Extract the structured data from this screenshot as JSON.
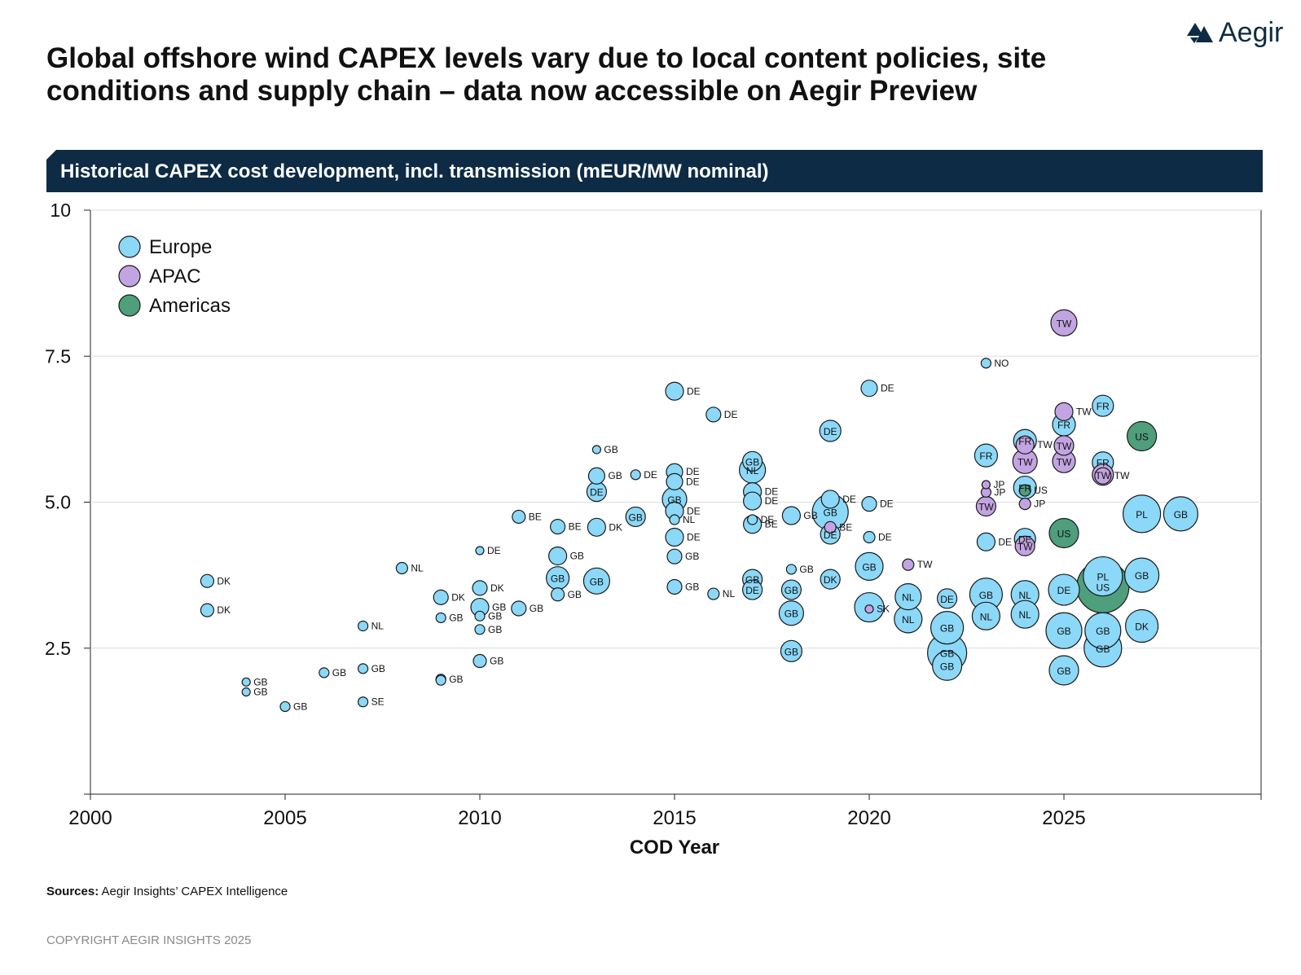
{
  "title": "Global offshore wind CAPEX levels vary due to local content policies, site conditions and supply chain – data now accessible on Aegir Preview",
  "logo": {
    "text": "Aegir",
    "icon": "mountain-logo-icon"
  },
  "banner": "Historical CAPEX cost development, incl. transmission (mEUR/MW nominal)",
  "sources": {
    "label": "Sources:",
    "text": "Aegir Insights’ CAPEX Intelligence"
  },
  "copyright": "COPYRIGHT AEGIR INSIGHTS 2025",
  "colors": {
    "Europe": "#8bd8f8",
    "APAC": "#c3a4e2",
    "Americas": "#4f9e7c",
    "banner": "#0d2b45"
  },
  "chart_data": {
    "type": "scatter",
    "xlabel": "COD Year",
    "ylabel": "",
    "xlim": [
      2000,
      2030
    ],
    "ylim": [
      0,
      10
    ],
    "xticks": [
      "2000",
      "2005",
      "2010",
      "2015",
      "2020",
      "2025"
    ],
    "yticks": [
      "2.5",
      "5.0",
      "7.5",
      "10"
    ],
    "grid": "horizontal",
    "legend": "top-left",
    "series": [
      {
        "name": "Europe",
        "points": [
          {
            "x": 2003,
            "y": 3.65,
            "s": 8,
            "label": "DK"
          },
          {
            "x": 2003,
            "y": 3.15,
            "s": 8,
            "label": "DK"
          },
          {
            "x": 2004,
            "y": 1.92,
            "s": 5,
            "label": "GB"
          },
          {
            "x": 2004,
            "y": 1.75,
            "s": 5,
            "label": "GB"
          },
          {
            "x": 2005,
            "y": 1.5,
            "s": 6,
            "label": "GB"
          },
          {
            "x": 2006,
            "y": 2.08,
            "s": 6,
            "label": "GB"
          },
          {
            "x": 2007,
            "y": 2.15,
            "s": 6,
            "label": "GB"
          },
          {
            "x": 2007,
            "y": 1.58,
            "s": 6,
            "label": "SE"
          },
          {
            "x": 2007,
            "y": 2.88,
            "s": 6,
            "label": "NL"
          },
          {
            "x": 2008,
            "y": 3.87,
            "s": 7,
            "label": "NL"
          },
          {
            "x": 2009,
            "y": 3.37,
            "s": 9,
            "label": "DK"
          },
          {
            "x": 2009,
            "y": 3.02,
            "s": 6,
            "label": "GB"
          },
          {
            "x": 2009,
            "y": 1.97,
            "s": 6,
            "label": "GB"
          },
          {
            "x": 2009,
            "y": 1.95,
            "s": 6,
            "label": ""
          },
          {
            "x": 2010,
            "y": 4.17,
            "s": 5,
            "label": "DE"
          },
          {
            "x": 2010,
            "y": 3.53,
            "s": 9,
            "label": "DK"
          },
          {
            "x": 2010,
            "y": 3.2,
            "s": 11,
            "label": "GB"
          },
          {
            "x": 2010,
            "y": 3.05,
            "s": 6,
            "label": "GB"
          },
          {
            "x": 2010,
            "y": 2.82,
            "s": 6,
            "label": "GB"
          },
          {
            "x": 2010,
            "y": 2.28,
            "s": 8,
            "label": "GB"
          },
          {
            "x": 2011,
            "y": 4.75,
            "s": 8,
            "label": "BE"
          },
          {
            "x": 2011,
            "y": 3.18,
            "s": 9,
            "label": "GB"
          },
          {
            "x": 2012,
            "y": 4.58,
            "s": 9,
            "label": "BE"
          },
          {
            "x": 2012,
            "y": 4.08,
            "s": 11,
            "label": "GB"
          },
          {
            "x": 2012,
            "y": 3.7,
            "s": 14,
            "label": "GB"
          },
          {
            "x": 2012,
            "y": 3.42,
            "s": 8,
            "label": "GB"
          },
          {
            "x": 2013,
            "y": 5.9,
            "s": 5,
            "label": "GB"
          },
          {
            "x": 2013,
            "y": 5.45,
            "s": 10,
            "label": "GB"
          },
          {
            "x": 2013,
            "y": 5.18,
            "s": 12,
            "label": "DE"
          },
          {
            "x": 2013,
            "y": 4.57,
            "s": 11,
            "label": "DK"
          },
          {
            "x": 2013,
            "y": 3.65,
            "s": 16,
            "label": "GB"
          },
          {
            "x": 2014,
            "y": 5.47,
            "s": 6,
            "label": "DE"
          },
          {
            "x": 2014,
            "y": 4.75,
            "s": 12,
            "label": "GB"
          },
          {
            "x": 2015,
            "y": 6.9,
            "s": 11,
            "label": "DE"
          },
          {
            "x": 2015,
            "y": 5.52,
            "s": 10,
            "label": "DE"
          },
          {
            "x": 2015,
            "y": 5.35,
            "s": 10,
            "label": "DE"
          },
          {
            "x": 2015,
            "y": 5.05,
            "s": 15,
            "label": "GB"
          },
          {
            "x": 2015,
            "y": 4.85,
            "s": 11,
            "label": "DE"
          },
          {
            "x": 2015,
            "y": 4.7,
            "s": 6,
            "label": "NL"
          },
          {
            "x": 2015,
            "y": 4.4,
            "s": 11,
            "label": "DE"
          },
          {
            "x": 2015,
            "y": 4.07,
            "s": 9,
            "label": "GB"
          },
          {
            "x": 2015,
            "y": 3.55,
            "s": 9,
            "label": "GB"
          },
          {
            "x": 2016,
            "y": 6.5,
            "s": 9,
            "label": "DE"
          },
          {
            "x": 2016,
            "y": 3.43,
            "s": 7,
            "label": "NL"
          },
          {
            "x": 2017,
            "y": 5.7,
            "s": 12,
            "label": "GB"
          },
          {
            "x": 2017,
            "y": 5.55,
            "s": 16,
            "label": "NL"
          },
          {
            "x": 2017,
            "y": 5.18,
            "s": 11,
            "label": "DE"
          },
          {
            "x": 2017,
            "y": 5.02,
            "s": 11,
            "label": "DE"
          },
          {
            "x": 2017,
            "y": 4.7,
            "s": 6,
            "label": "DE"
          },
          {
            "x": 2017,
            "y": 4.62,
            "s": 11,
            "label": "BE"
          },
          {
            "x": 2017,
            "y": 3.68,
            "s": 12,
            "label": "GB"
          },
          {
            "x": 2017,
            "y": 3.5,
            "s": 12,
            "label": "DE"
          },
          {
            "x": 2018,
            "y": 4.77,
            "s": 11,
            "label": "GB"
          },
          {
            "x": 2018,
            "y": 3.85,
            "s": 6,
            "label": "GB"
          },
          {
            "x": 2018,
            "y": 3.5,
            "s": 12,
            "label": "GB"
          },
          {
            "x": 2018,
            "y": 3.1,
            "s": 15,
            "label": "GB"
          },
          {
            "x": 2018,
            "y": 2.45,
            "s": 13,
            "label": "GB"
          },
          {
            "x": 2019,
            "y": 6.22,
            "s": 13,
            "label": "DE"
          },
          {
            "x": 2019,
            "y": 5.05,
            "s": 11,
            "label": "DE"
          },
          {
            "x": 2019,
            "y": 4.83,
            "s": 22,
            "label": "GB"
          },
          {
            "x": 2019,
            "y": 4.45,
            "s": 12,
            "label": "DE"
          },
          {
            "x": 2019,
            "y": 3.68,
            "s": 12,
            "label": "DK"
          },
          {
            "x": 2020,
            "y": 6.95,
            "s": 10,
            "label": "DE"
          },
          {
            "x": 2020,
            "y": 4.97,
            "s": 9,
            "label": "DE"
          },
          {
            "x": 2020,
            "y": 4.4,
            "s": 7,
            "label": "DE"
          },
          {
            "x": 2020,
            "y": 3.9,
            "s": 17,
            "label": "GB"
          },
          {
            "x": 2020,
            "y": 3.2,
            "s": 18,
            "label": ""
          },
          {
            "x": 2021,
            "y": 3.38,
            "s": 16,
            "label": "NL"
          },
          {
            "x": 2021,
            "y": 3.0,
            "s": 17,
            "label": "NL"
          },
          {
            "x": 2022,
            "y": 3.35,
            "s": 12,
            "label": "DE"
          },
          {
            "x": 2022,
            "y": 2.85,
            "s": 20,
            "label": "GB"
          },
          {
            "x": 2022,
            "y": 2.42,
            "s": 24,
            "label": "GB"
          },
          {
            "x": 2022,
            "y": 2.2,
            "s": 18,
            "label": "GB"
          },
          {
            "x": 2023,
            "y": 7.38,
            "s": 6,
            "label": "NO"
          },
          {
            "x": 2023,
            "y": 5.8,
            "s": 14,
            "label": "FR"
          },
          {
            "x": 2023,
            "y": 4.32,
            "s": 11,
            "label": "DE"
          },
          {
            "x": 2023,
            "y": 3.42,
            "s": 20,
            "label": "GB"
          },
          {
            "x": 2023,
            "y": 3.05,
            "s": 17,
            "label": "NL"
          },
          {
            "x": 2024,
            "y": 6.05,
            "s": 14,
            "label": "FR"
          },
          {
            "x": 2024,
            "y": 5.25,
            "s": 14,
            "label": "FR"
          },
          {
            "x": 2024,
            "y": 4.37,
            "s": 13,
            "label": "DE"
          },
          {
            "x": 2024,
            "y": 3.42,
            "s": 17,
            "label": "NL"
          },
          {
            "x": 2024,
            "y": 3.08,
            "s": 17,
            "label": "NL"
          },
          {
            "x": 2025,
            "y": 6.33,
            "s": 14,
            "label": "FR"
          },
          {
            "x": 2025,
            "y": 3.5,
            "s": 19,
            "label": "DE"
          },
          {
            "x": 2025,
            "y": 2.8,
            "s": 22,
            "label": "GB"
          },
          {
            "x": 2025,
            "y": 2.12,
            "s": 18,
            "label": "GB"
          },
          {
            "x": 2026,
            "y": 6.65,
            "s": 13,
            "label": "FR"
          },
          {
            "x": 2026,
            "y": 5.68,
            "s": 13,
            "label": "FR"
          },
          {
            "x": 2026,
            "y": 3.73,
            "s": 24,
            "label": "PL"
          },
          {
            "x": 2026,
            "y": 2.8,
            "s": 22,
            "label": "GB"
          },
          {
            "x": 2026,
            "y": 2.5,
            "s": 23,
            "label": "GB"
          },
          {
            "x": 2027,
            "y": 4.8,
            "s": 23,
            "label": "PL"
          },
          {
            "x": 2027,
            "y": 3.75,
            "s": 21,
            "label": "GB"
          },
          {
            "x": 2027,
            "y": 2.88,
            "s": 20,
            "label": "DK"
          },
          {
            "x": 2028,
            "y": 4.8,
            "s": 21,
            "label": "GB"
          }
        ]
      },
      {
        "name": "APAC",
        "points": [
          {
            "x": 2020,
            "y": 3.17,
            "s": 5,
            "label": "SK"
          },
          {
            "x": 2021,
            "y": 3.93,
            "s": 7,
            "label": "TW"
          },
          {
            "x": 2019,
            "y": 4.57,
            "s": 7,
            "label": "BE"
          },
          {
            "x": 2023,
            "y": 5.3,
            "s": 5,
            "label": "JP"
          },
          {
            "x": 2023,
            "y": 5.17,
            "s": 6,
            "label": "JP"
          },
          {
            "x": 2023,
            "y": 4.93,
            "s": 12,
            "label": "TW"
          },
          {
            "x": 2024,
            "y": 5.98,
            "s": 11,
            "label": "TW"
          },
          {
            "x": 2024,
            "y": 5.7,
            "s": 15,
            "label": "TW"
          },
          {
            "x": 2024,
            "y": 4.97,
            "s": 7,
            "label": "JP"
          },
          {
            "x": 2024,
            "y": 4.25,
            "s": 12,
            "label": "TW"
          },
          {
            "x": 2025,
            "y": 8.07,
            "s": 16,
            "label": "TW"
          },
          {
            "x": 2025,
            "y": 6.55,
            "s": 11,
            "label": "TW"
          },
          {
            "x": 2025,
            "y": 5.97,
            "s": 12,
            "label": "TW"
          },
          {
            "x": 2025,
            "y": 5.7,
            "s": 14,
            "label": "TW"
          },
          {
            "x": 2026,
            "y": 5.47,
            "s": 13,
            "label": "TW"
          },
          {
            "x": 2026,
            "y": 5.45,
            "s": 10,
            "label": "TW"
          }
        ]
      },
      {
        "name": "Americas",
        "points": [
          {
            "x": 2024,
            "y": 5.2,
            "s": 7,
            "label": "US"
          },
          {
            "x": 2025,
            "y": 4.47,
            "s": 18,
            "label": "US"
          },
          {
            "x": 2026,
            "y": 3.55,
            "s": 32,
            "label": "US"
          },
          {
            "x": 2027,
            "y": 6.13,
            "s": 18,
            "label": "US"
          }
        ]
      }
    ]
  }
}
